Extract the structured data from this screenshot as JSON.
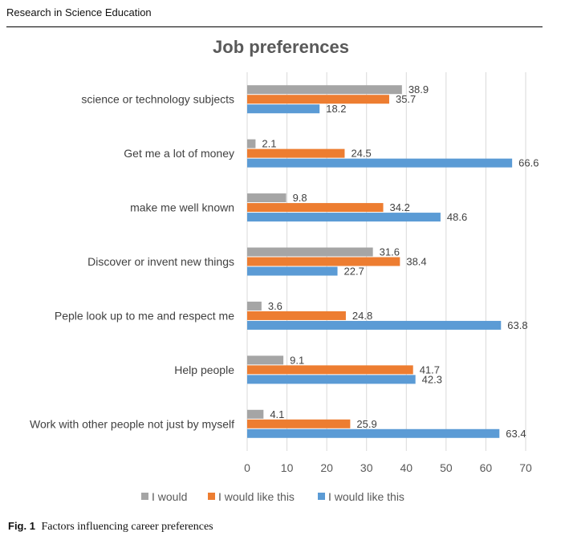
{
  "header": {
    "journal": "Research in Science Education"
  },
  "caption": {
    "label": "Fig. 1",
    "text": "Factors influencing career preferences"
  },
  "chart_data": {
    "type": "bar",
    "orientation": "horizontal",
    "title": "Job preferences",
    "xlabel": "",
    "ylabel": "",
    "xlim": [
      0,
      70
    ],
    "xticks": [
      0,
      10,
      20,
      30,
      40,
      50,
      60,
      70
    ],
    "grid": true,
    "legend_position": "bottom",
    "categories": [
      "science or technology subjects",
      "Get me a lot of money",
      "make me well known",
      "Discover or invent new things",
      "Peple look up to me and respect me",
      "Help people",
      "Work with other people not just by myself"
    ],
    "series": [
      {
        "name": "I would",
        "color": "#a5a5a5",
        "values": [
          38.9,
          2.1,
          9.8,
          31.6,
          3.6,
          9.1,
          4.1
        ]
      },
      {
        "name": "I would like this",
        "color": "#ed7d31",
        "values": [
          35.7,
          24.5,
          34.2,
          38.4,
          24.8,
          41.7,
          25.9
        ]
      },
      {
        "name": "I would like this",
        "color": "#5b9bd5",
        "values": [
          18.2,
          66.6,
          48.6,
          22.7,
          63.8,
          42.3,
          63.4
        ]
      }
    ]
  }
}
